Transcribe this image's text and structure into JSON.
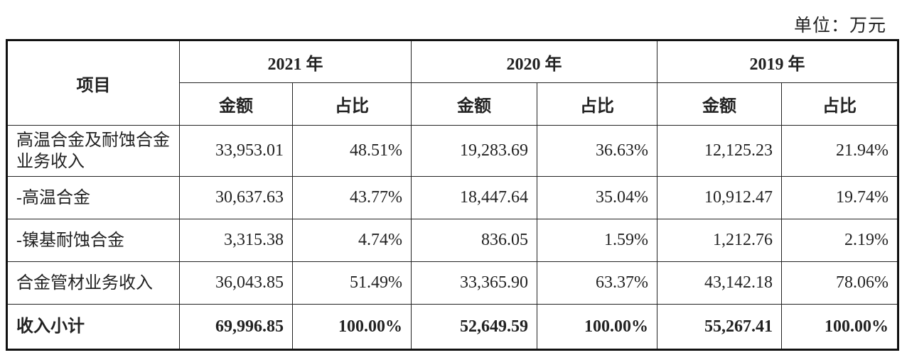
{
  "unit_label": "单位：万元",
  "table": {
    "item_header": "项目",
    "years": [
      "2021 年",
      "2020 年",
      "2019 年"
    ],
    "sub_headers": [
      "金额",
      "占比"
    ],
    "rows": [
      {
        "item": "高温合金及耐蚀合金业务收入",
        "values": [
          "33,953.01",
          "48.51%",
          "19,283.69",
          "36.63%",
          "12,125.23",
          "21.94%"
        ]
      },
      {
        "item": "-高温合金",
        "values": [
          "30,637.63",
          "43.77%",
          "18,447.64",
          "35.04%",
          "10,912.47",
          "19.74%"
        ]
      },
      {
        "item": "-镍基耐蚀合金",
        "values": [
          "3,315.38",
          "4.74%",
          "836.05",
          "1.59%",
          "1,212.76",
          "2.19%"
        ]
      },
      {
        "item": "合金管材业务收入",
        "values": [
          "36,043.85",
          "51.49%",
          "33,365.90",
          "63.37%",
          "43,142.18",
          "78.06%"
        ]
      },
      {
        "item": "收入小计",
        "values": [
          "69,996.85",
          "100.00%",
          "52,649.59",
          "100.00%",
          "55,267.41",
          "100.00%"
        ],
        "bold": true
      }
    ]
  }
}
